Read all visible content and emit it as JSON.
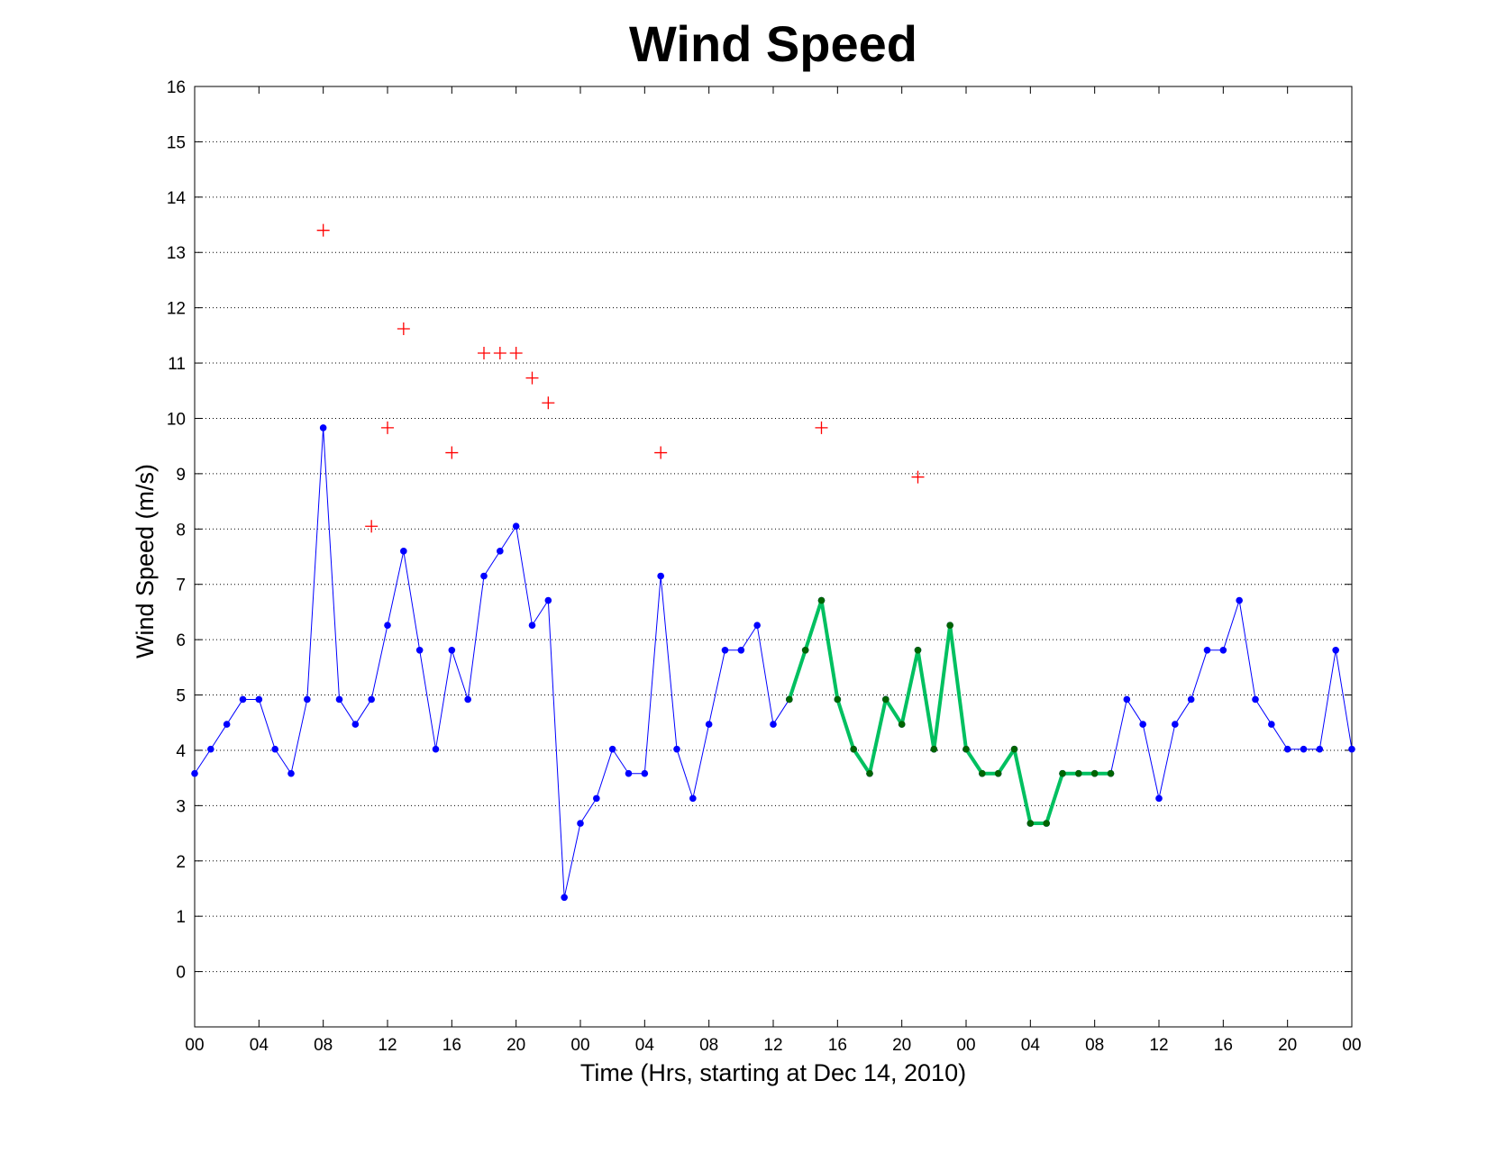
{
  "chart_data": {
    "type": "line",
    "title": "Wind Speed",
    "x_label": "Time (Hrs, starting at Dec 14, 2010)",
    "y_label": "Wind Speed (m/s)",
    "xlim": [
      0,
      72
    ],
    "ylim": [
      -1,
      16
    ],
    "xticks": [
      {
        "value": 0,
        "label": "00"
      },
      {
        "value": 4,
        "label": "04"
      },
      {
        "value": 8,
        "label": "08"
      },
      {
        "value": 12,
        "label": "12"
      },
      {
        "value": 16,
        "label": "16"
      },
      {
        "value": 20,
        "label": "20"
      },
      {
        "value": 24,
        "label": "00"
      },
      {
        "value": 28,
        "label": "04"
      },
      {
        "value": 32,
        "label": "08"
      },
      {
        "value": 36,
        "label": "12"
      },
      {
        "value": 40,
        "label": "16"
      },
      {
        "value": 44,
        "label": "20"
      },
      {
        "value": 48,
        "label": "00"
      },
      {
        "value": 52,
        "label": "04"
      },
      {
        "value": 56,
        "label": "08"
      },
      {
        "value": 60,
        "label": "12"
      },
      {
        "value": 64,
        "label": "16"
      },
      {
        "value": 68,
        "label": "20"
      },
      {
        "value": 72,
        "label": "00"
      }
    ],
    "yticks": [
      0,
      1,
      2,
      3,
      4,
      5,
      6,
      7,
      8,
      9,
      10,
      11,
      12,
      13,
      14,
      15,
      16
    ],
    "grid": "y",
    "x": [
      0,
      1,
      2,
      3,
      4,
      5,
      6,
      7,
      8,
      9,
      10,
      11,
      12,
      13,
      14,
      15,
      16,
      17,
      18,
      19,
      20,
      21,
      22,
      23,
      24,
      25,
      26,
      27,
      28,
      29,
      30,
      31,
      32,
      33,
      34,
      35,
      36,
      37,
      38,
      39,
      40,
      41,
      42,
      43,
      44,
      45,
      46,
      47,
      48,
      49,
      50,
      51,
      52,
      53,
      54,
      55,
      56,
      57,
      58,
      59,
      60,
      61,
      62,
      63,
      64,
      65,
      66,
      67,
      68,
      69,
      70,
      71,
      72
    ],
    "series": [
      {
        "color": "#0000ff",
        "marker_color": "#0000ff",
        "line_width": 1,
        "values": [
          3.58,
          4.02,
          4.47,
          4.92,
          4.92,
          4.02,
          3.58,
          4.92,
          9.83,
          4.92,
          4.47,
          4.92,
          6.26,
          7.6,
          5.81,
          4.02,
          5.81,
          4.92,
          7.15,
          7.6,
          8.05,
          6.26,
          6.71,
          1.34,
          2.68,
          3.13,
          4.02,
          3.58,
          3.58,
          7.15,
          4.02,
          3.13,
          4.47,
          5.81,
          5.81,
          6.26,
          4.47,
          4.92,
          5.81,
          6.71,
          4.92,
          4.02,
          3.58,
          4.92,
          4.47,
          5.81,
          4.02,
          6.26,
          4.02,
          3.58,
          3.58,
          4.02,
          2.68,
          2.68,
          3.58,
          3.58,
          3.58,
          3.58,
          4.92,
          4.47,
          3.13,
          4.47,
          4.92,
          5.81,
          5.81,
          6.71,
          4.92,
          4.47,
          4.02,
          4.02,
          4.02,
          5.81,
          4.02
        ]
      },
      {
        "color": "#00c060",
        "marker_color": "#006400",
        "line_width": 4,
        "values": [
          null,
          null,
          null,
          null,
          null,
          null,
          null,
          null,
          null,
          null,
          null,
          null,
          null,
          null,
          null,
          null,
          null,
          null,
          null,
          null,
          null,
          null,
          null,
          null,
          null,
          null,
          null,
          null,
          null,
          null,
          null,
          null,
          null,
          null,
          null,
          null,
          null,
          4.92,
          5.81,
          6.71,
          4.92,
          4.02,
          3.58,
          4.92,
          4.47,
          5.81,
          4.02,
          6.26,
          4.02,
          3.58,
          3.58,
          4.02,
          2.68,
          2.68,
          3.58,
          3.58,
          3.58,
          3.58,
          null,
          null,
          null,
          null,
          null,
          null,
          null,
          null,
          null,
          null,
          null,
          null,
          null,
          null,
          null
        ]
      },
      {
        "color": "#ff0000",
        "marker": "plus",
        "x": [
          8,
          11,
          12,
          13,
          16,
          18,
          19,
          20,
          21,
          22,
          29,
          39,
          45
        ],
        "values": [
          13.4,
          8.05,
          9.83,
          11.62,
          9.38,
          11.18,
          11.18,
          11.18,
          10.73,
          10.28,
          9.38,
          9.83,
          8.94
        ]
      }
    ]
  }
}
